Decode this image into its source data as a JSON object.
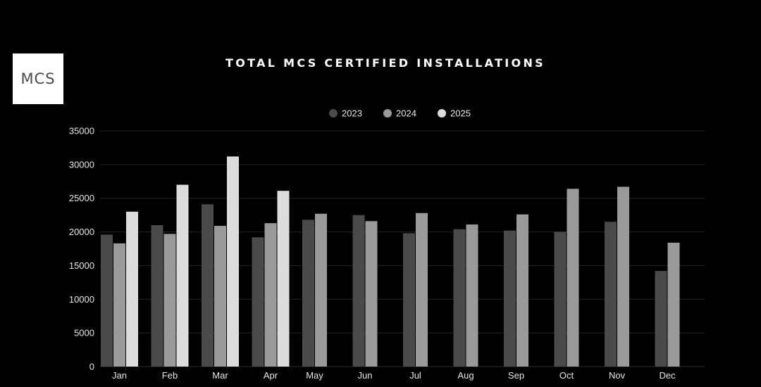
{
  "logo": {
    "text": "MCS"
  },
  "chart_data": {
    "type": "bar",
    "title": "TOTAL MCS CERTIFIED INSTALLATIONS",
    "xlabel": "",
    "ylabel": "",
    "ylim": [
      0,
      35000
    ],
    "yticks": [
      0,
      5000,
      10000,
      15000,
      20000,
      25000,
      30000,
      35000
    ],
    "grid": true,
    "legend_position": "top",
    "categories": [
      "Jan",
      "Feb",
      "Mar",
      "Apr",
      "May",
      "Jun",
      "Jul",
      "Aug",
      "Sep",
      "Oct",
      "Nov",
      "Dec"
    ],
    "series": [
      {
        "name": "2023",
        "color": "#4a4a4a",
        "values": [
          19600,
          21000,
          24100,
          19200,
          21800,
          22500,
          19800,
          20400,
          20200,
          20000,
          21500,
          14200
        ]
      },
      {
        "name": "2024",
        "color": "#9a9a9a",
        "values": [
          18300,
          19700,
          20900,
          21300,
          22700,
          21600,
          22800,
          21100,
          22600,
          26400,
          26700,
          18400
        ]
      },
      {
        "name": "2025",
        "color": "#dcdcdc",
        "values": [
          23000,
          27000,
          31200,
          26100,
          null,
          null,
          null,
          null,
          null,
          null,
          null,
          null
        ]
      }
    ]
  }
}
